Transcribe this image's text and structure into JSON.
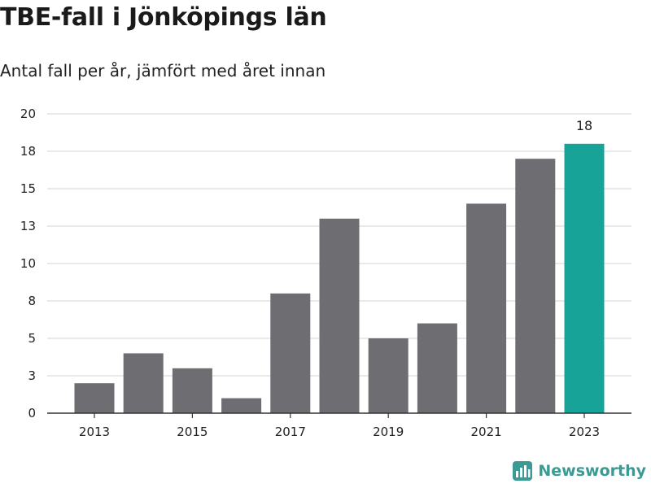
{
  "title": "TBE-fall i Jönköpings län",
  "subtitle": "Antal fall per år, jämfört med året innan",
  "brand": {
    "name": "Newsworthy",
    "icon": "newsworthy-logo-icon"
  },
  "colors": {
    "bar": "#6d6d72",
    "highlight": "#17a398",
    "grid": "#dcdcdc",
    "axis": "#333333",
    "brand": "#3a9b94"
  },
  "chart_data": {
    "type": "bar",
    "categories": [
      "2013",
      "2014",
      "2015",
      "2016",
      "2017",
      "2018",
      "2019",
      "2020",
      "2021",
      "2022",
      "2023"
    ],
    "values": [
      2,
      4,
      3,
      1,
      8,
      13,
      5,
      6,
      14,
      17,
      18
    ],
    "highlight_index": 10,
    "data_labels": [
      {
        "index": 10,
        "text": "18"
      }
    ],
    "x_tick_labels": [
      "2013",
      "2015",
      "2017",
      "2019",
      "2021",
      "2023"
    ],
    "y_ticks": [
      0,
      2.5,
      5,
      7.5,
      10,
      12.5,
      15,
      17.5,
      20
    ],
    "y_tick_labels": [
      "0",
      "3",
      "5",
      "8",
      "10",
      "13",
      "15",
      "18",
      "20"
    ],
    "ylim": [
      0,
      20
    ],
    "grid": true,
    "legend": "none"
  }
}
